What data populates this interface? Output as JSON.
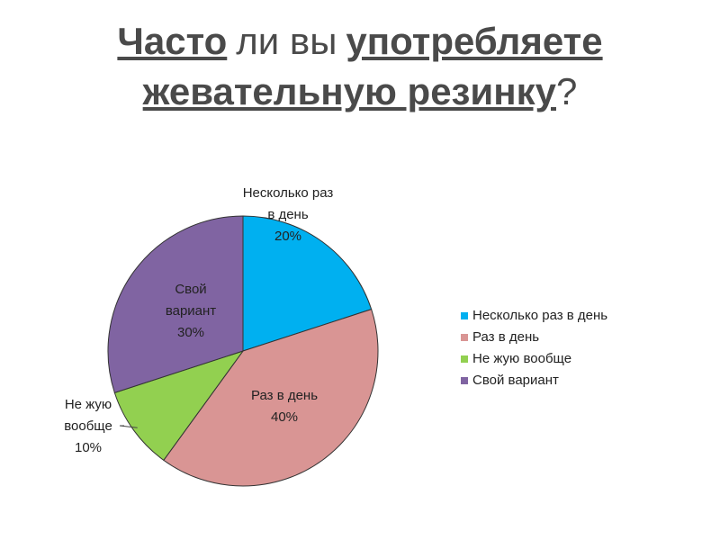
{
  "chart_data": {
    "type": "pie",
    "title": [
      "Часто",
      "ли вы",
      "употребляете",
      "жевательную резинку",
      "?"
    ],
    "title_bold": [
      true,
      false,
      true,
      true,
      false
    ],
    "title_line_breaks_after": [
      2
    ],
    "categories": [
      "Несколько раз в день",
      "Раз в день",
      "Не жую вообще",
      "Свой вариант"
    ],
    "values": [
      20,
      40,
      10,
      30
    ],
    "value_labels": [
      "20%",
      "40%",
      "10%",
      "30%"
    ],
    "colors": [
      "#00b0f0",
      "#d99594",
      "#92d050",
      "#8064a2"
    ],
    "legend": "right"
  }
}
